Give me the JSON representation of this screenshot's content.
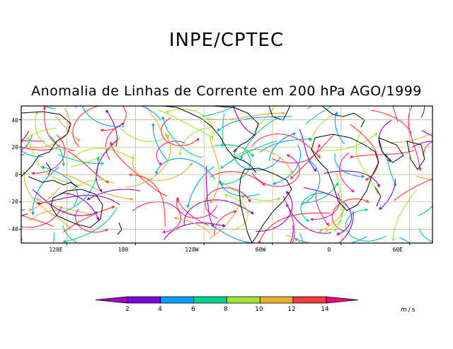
{
  "header": {
    "title": "INPE/CPTEC",
    "subtitle": "Anomalia de Linhas de Corrente em 200 hPa AGO/1999"
  },
  "map": {
    "y_ticks": [
      "40",
      "20",
      "0",
      "-20",
      "-40"
    ],
    "x_ticks": [
      "120E",
      "180",
      "120W",
      "60W",
      "0",
      "60E"
    ],
    "lat_range": [
      -50,
      50
    ],
    "lon_range": [
      80,
      440
    ],
    "grid": true,
    "line_colors": [
      "#8b00c8",
      "#00a0ff",
      "#00c896",
      "#a0e632",
      "#e6aa32",
      "#ff3232",
      "#f01e8c"
    ]
  },
  "colorbar": {
    "labels": [
      "2",
      "4",
      "6",
      "8",
      "10",
      "12",
      "14"
    ],
    "colors": [
      "#a000c8",
      "#8200dc",
      "#1e3cff",
      "#00a0ff",
      "#00c8c8",
      "#00d28c",
      "#a0e632",
      "#e6dc32",
      "#e6af2d",
      "#f08228",
      "#fa3c3c",
      "#f00082"
    ],
    "bins": [
      "#a000c8",
      "#8200dc",
      "#00a0ff",
      "#00d28c",
      "#a0e632",
      "#e6af2d",
      "#fa3c3c",
      "#f00082"
    ],
    "units": "m/s"
  }
}
